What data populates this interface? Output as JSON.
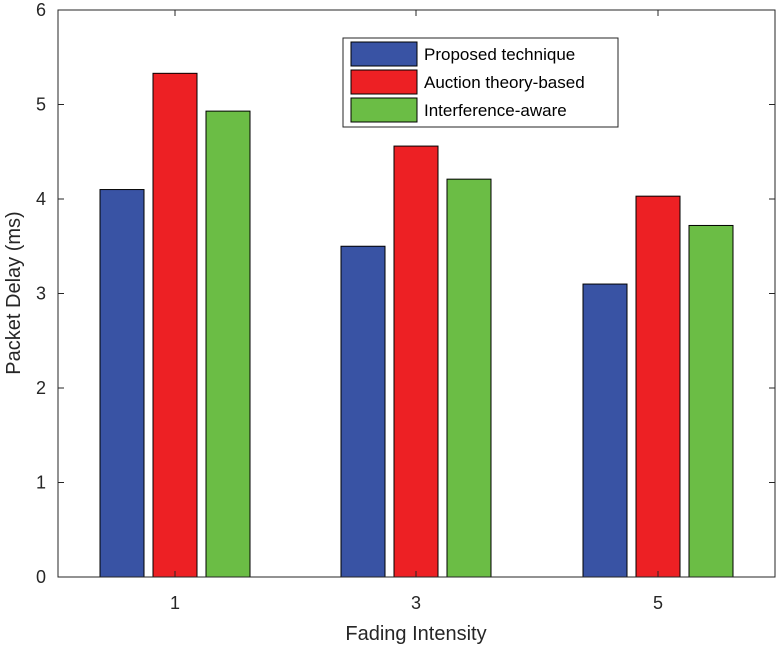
{
  "chart_data": {
    "type": "bar",
    "title": "",
    "xlabel": "Fading Intensity",
    "ylabel": "Packet Delay (ms)",
    "categories": [
      "1",
      "3",
      "5"
    ],
    "ylim": [
      0,
      6
    ],
    "yticks": [
      "0",
      "1",
      "2",
      "3",
      "4",
      "5",
      "6"
    ],
    "series": [
      {
        "name": "Proposed technique",
        "color": "#3953a4",
        "values": [
          4.1,
          3.5,
          3.1
        ]
      },
      {
        "name": "Auction theory-based",
        "color": "#ed2024",
        "values": [
          5.33,
          4.56,
          4.03
        ]
      },
      {
        "name": "Interference-aware",
        "color": "#6bbd45",
        "values": [
          4.93,
          4.21,
          3.72
        ]
      }
    ],
    "legend_position": "top-right",
    "grid": false
  }
}
